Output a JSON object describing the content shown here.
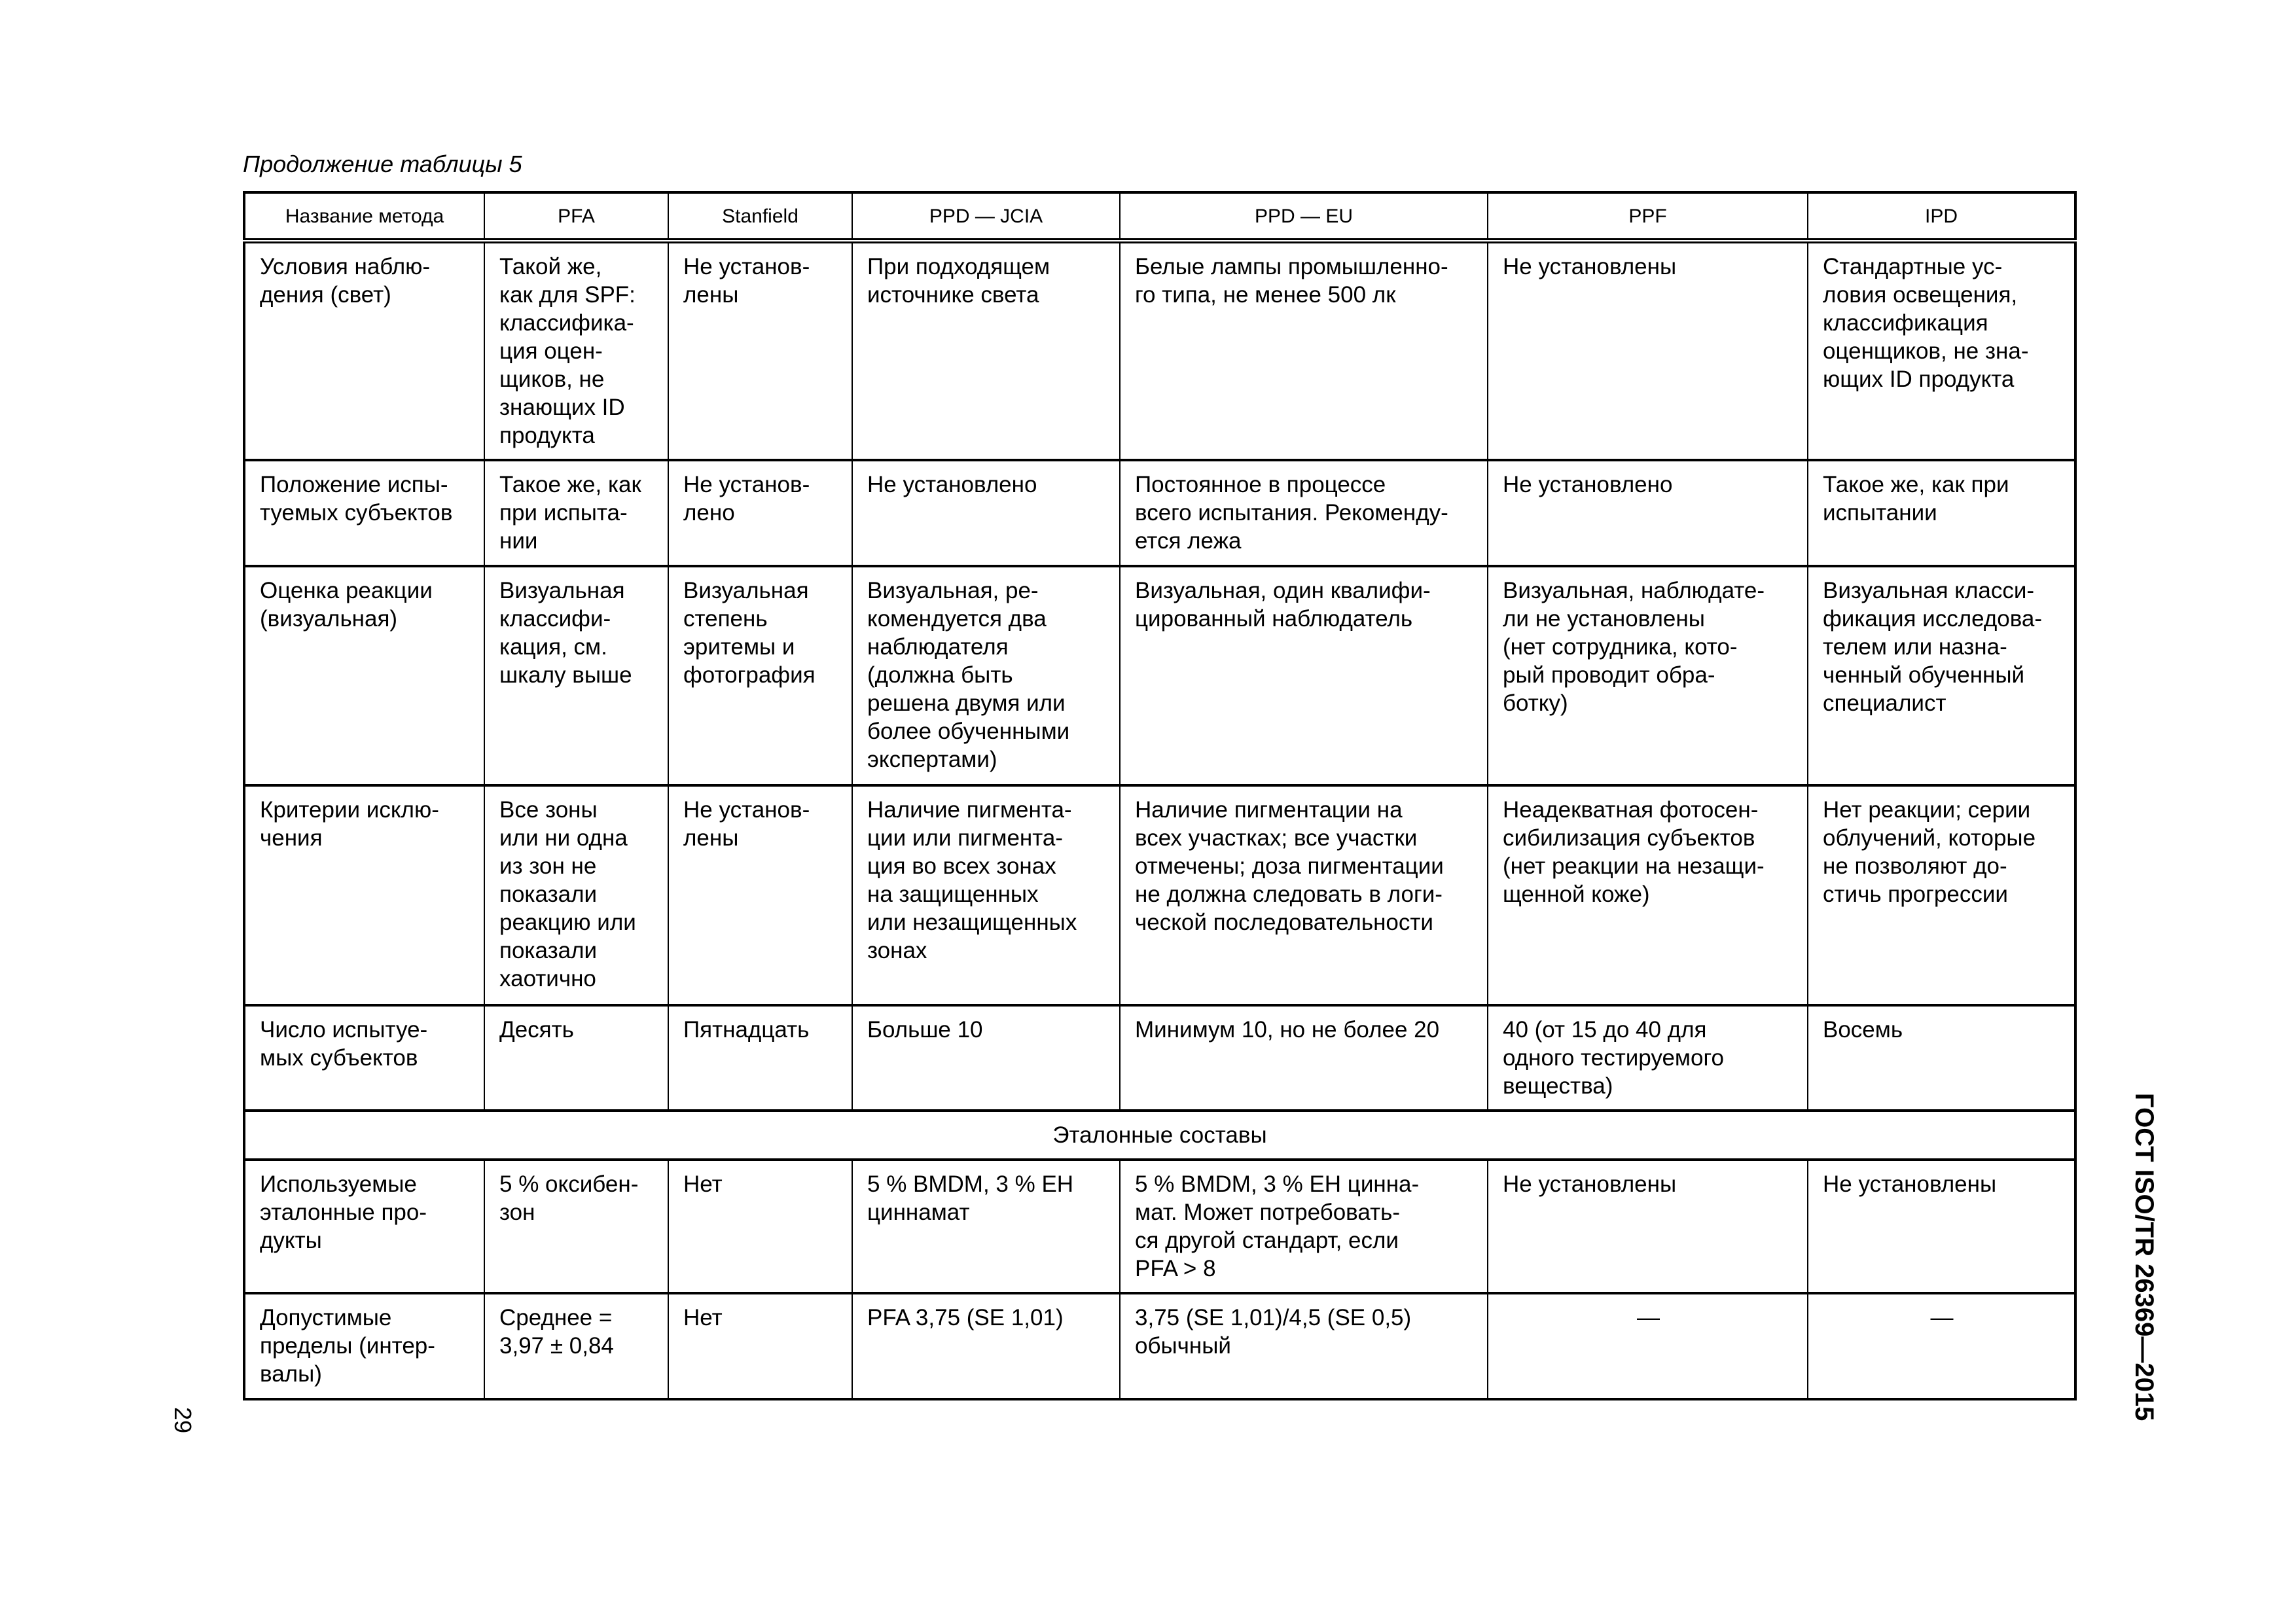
{
  "caption": "Продолжение таблицы 5",
  "headers": [
    "Название метода",
    "PFA",
    "Stanfield",
    "PPD — JCIA",
    "PPD — EU",
    "PPF",
    "IPD"
  ],
  "rows": [
    [
      "Условия наблю-\nдения (свет)",
      "Такой же,\nкак для SPF:\nклассифика-\nция оцен-\nщиков, не\nзнающих ID\nпродукта",
      "Не установ-\nлены",
      "При подходящем\nисточнике света",
      "Белые лампы промышленно-\nго типа, не менее 500 лк",
      "Не установлены",
      "Стандартные ус-\nловия освещения,\nклассификация\nоценщиков, не зна-\nющих ID продукта"
    ],
    [
      "Положение испы-\nтуемых субъектов",
      "Такое же, как\nпри испыта-\nнии",
      "Не установ-\nлено",
      "Не установлено",
      "Постоянное в процессе\nвсего испытания. Рекоменду-\nется лежа",
      "Не установлено",
      "Такое же, как при\nиспытании"
    ],
    [
      "Оценка реакции\n(визуальная)",
      "Визуальная\nклассифи-\nкация, см.\nшкалу выше",
      "Визуальная\nстепень\nэритемы и\nфотография",
      "Визуальная, ре-\nкомендуется два\nнаблюдателя\n(должна быть\nрешена двумя или\nболее обученными\nэкспертами)",
      "Визуальная, один квалифи-\nцированный наблюдатель",
      "Визуальная, наблюдате-\nли не установлены\n(нет сотрудника, кото-\nрый проводит обра-\nботку)",
      "Визуальная класси-\nфикация исследова-\nтелем или назна-\nченный обученный\nспециалист"
    ],
    [
      "Критерии исклю-\nчения",
      "Все зоны\nили ни одна\nиз зон не\nпоказали\nреакцию или\nпоказали\nхаотично",
      "Не установ-\nлены",
      "Наличие пигмента-\nции или пигмента-\nция во всех зонах\nна защищенных\nили незащищенных\nзонах",
      "Наличие пигментации на\nвсех участках; все участки\nотмечены; доза пигментации\nне должна следовать в логи-\nческой последовательности",
      "Неадекватная фотосен-\nсибилизация субъектов\n(нет реакции на незащи-\nщенной коже)",
      "Нет реакции; серии\nоблучений, которые\nне позволяют до-\nстичь прогрессии"
    ],
    [
      "Число испытуе-\nмых субъектов",
      "Десять",
      "Пятнадцать",
      "Больше 10",
      "Минимум 10, но не более 20",
      "40 (от 15 до 40 для\nодного тестируемого\nвещества)",
      "Восемь"
    ]
  ],
  "section_title": "Эталонные составы",
  "rows2": [
    [
      "Используемые\nэталонные про-\nдукты",
      "5 % оксибен-\nзон",
      "Нет",
      "5 % BMDM, 3 % EH\nциннамат",
      "5 % BMDM, 3 % EH цинна-\nмат. Может потребовать-\nся другой стандарт, если\nPFA > 8",
      "Не установлены",
      "Не установлены"
    ],
    [
      "Допустимые\nпределы (интер-\nвалы)",
      "Среднее =\n3,97 ± 0,84",
      "Нет",
      "PFA 3,75 (SE 1,01)",
      "3,75 (SE 1,01)/4,5 (SE 0,5)\nобычный",
      "—",
      "—"
    ]
  ],
  "page_number": "29",
  "standard_id": "ГОСТ ISO/TR 26369—2015"
}
